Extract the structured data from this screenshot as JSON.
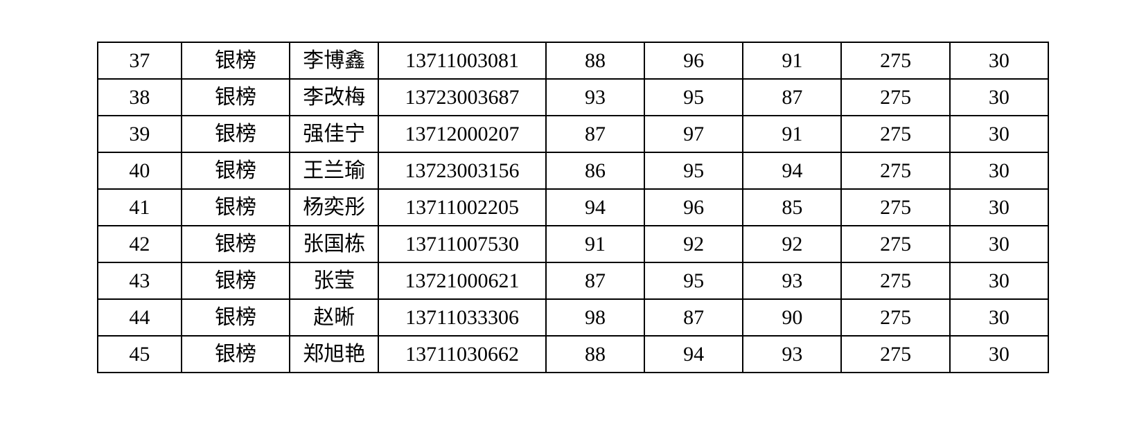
{
  "table": {
    "type": "table",
    "background_color": "#ffffff",
    "border_color": "#000000",
    "border_width": 2,
    "text_color": "#000000",
    "font_size": 30,
    "font_family": "SimSun",
    "column_widths_pct": [
      8.5,
      11,
      9,
      17,
      10,
      10,
      10,
      11,
      10
    ],
    "column_alignment": [
      "center",
      "center",
      "center",
      "center",
      "center",
      "center",
      "center",
      "center",
      "center"
    ],
    "rows": [
      [
        "37",
        "银榜",
        "李博鑫",
        "13711003081",
        "88",
        "96",
        "91",
        "275",
        "30"
      ],
      [
        "38",
        "银榜",
        "李改梅",
        "13723003687",
        "93",
        "95",
        "87",
        "275",
        "30"
      ],
      [
        "39",
        "银榜",
        "强佳宁",
        "13712000207",
        "87",
        "97",
        "91",
        "275",
        "30"
      ],
      [
        "40",
        "银榜",
        "王兰瑜",
        "13723003156",
        "86",
        "95",
        "94",
        "275",
        "30"
      ],
      [
        "41",
        "银榜",
        "杨奕彤",
        "13711002205",
        "94",
        "96",
        "85",
        "275",
        "30"
      ],
      [
        "42",
        "银榜",
        "张国栋",
        "13711007530",
        "91",
        "92",
        "92",
        "275",
        "30"
      ],
      [
        "43",
        "银榜",
        "张莹",
        "13721000621",
        "87",
        "95",
        "93",
        "275",
        "30"
      ],
      [
        "44",
        "银榜",
        "赵晰",
        "13711033306",
        "98",
        "87",
        "90",
        "275",
        "30"
      ],
      [
        "45",
        "银榜",
        "郑旭艳",
        "13711030662",
        "88",
        "94",
        "93",
        "275",
        "30"
      ]
    ]
  }
}
